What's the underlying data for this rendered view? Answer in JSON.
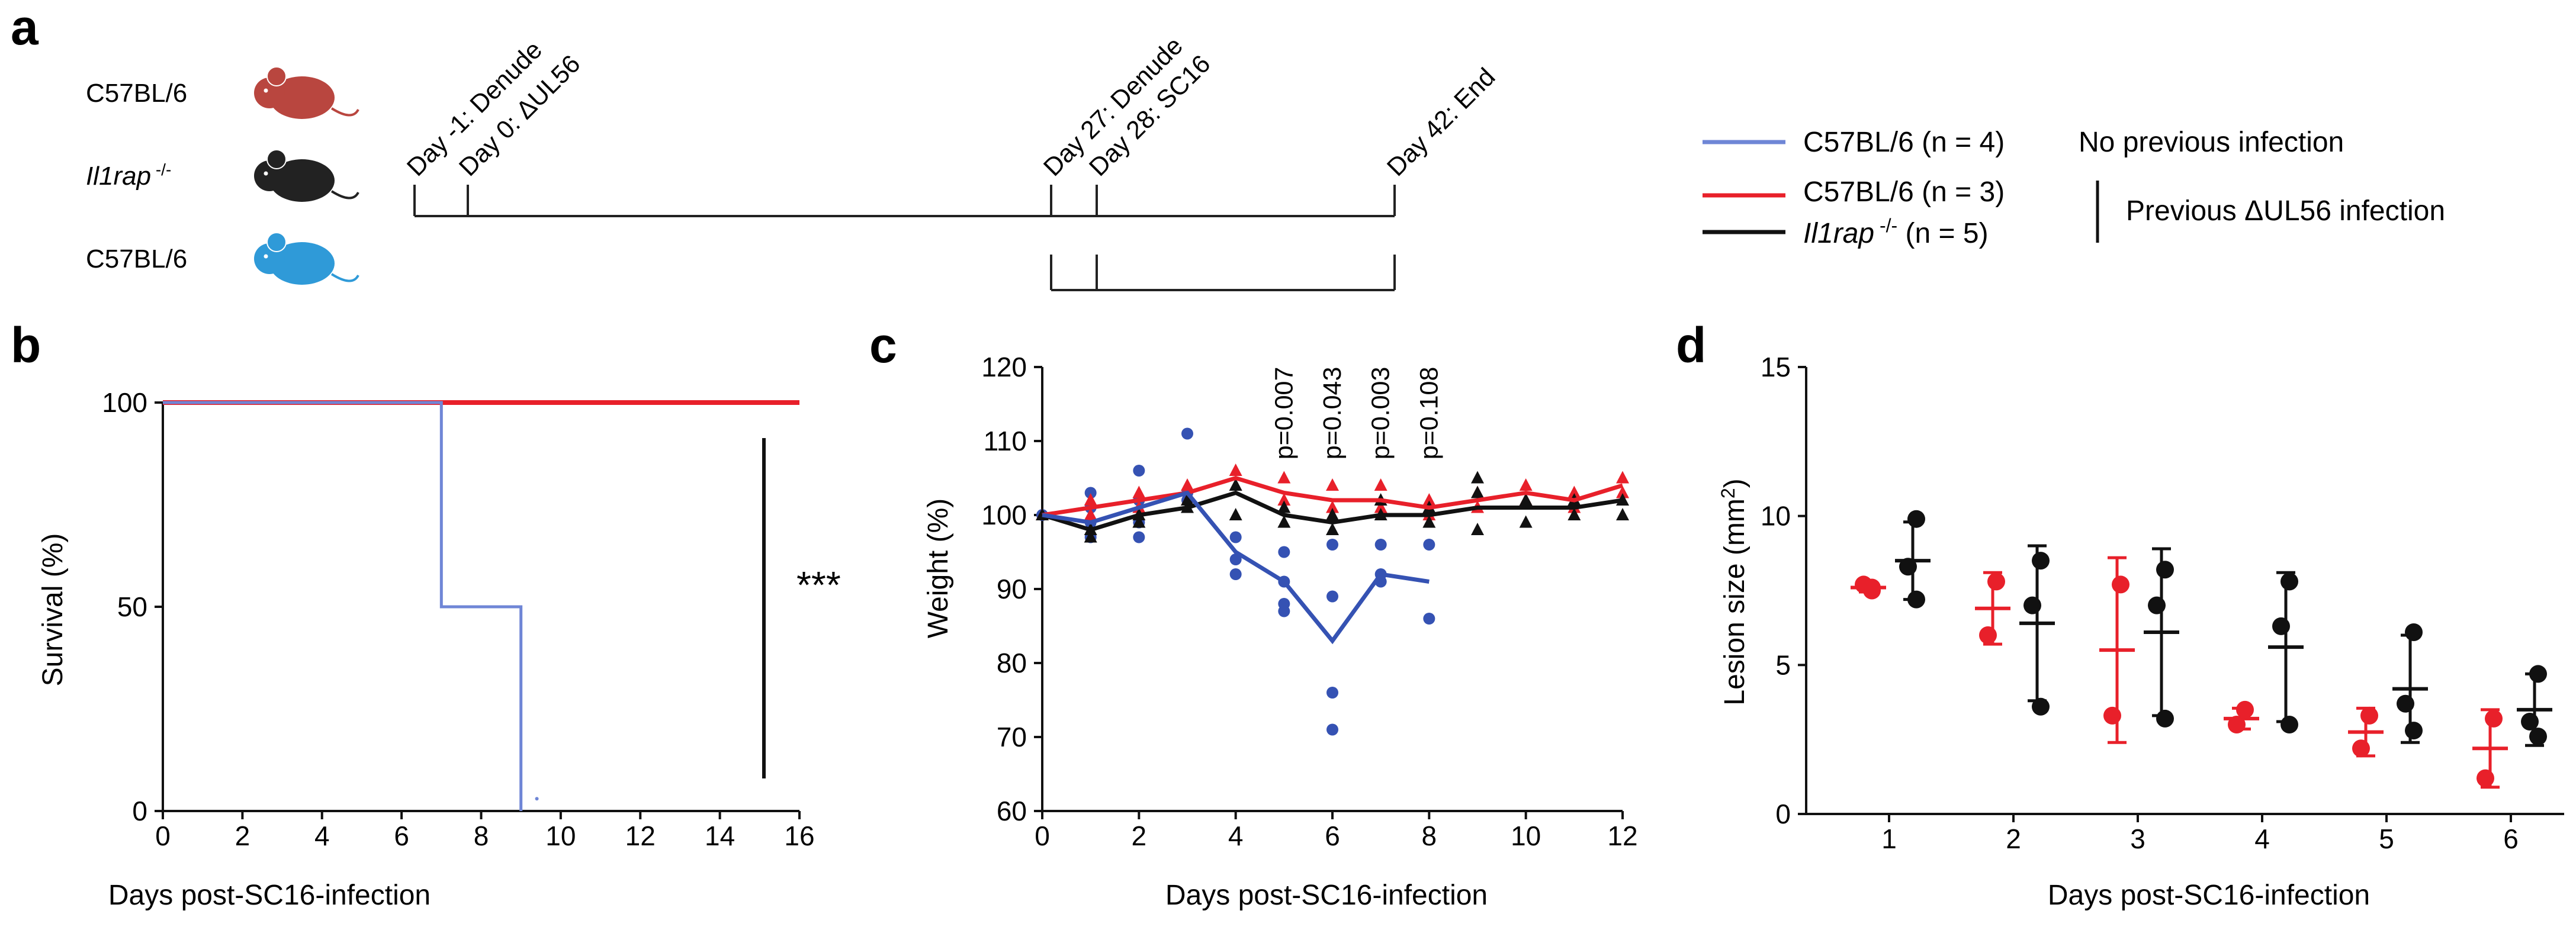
{
  "colors": {
    "blue": "#6f86d6",
    "blue_dots": "#3552b3",
    "red": "#e8202a",
    "black": "#111111",
    "mouse_red": "#b9463f",
    "mouse_black": "#222222",
    "mouse_blue": "#2f9ad8"
  },
  "panel_a": {
    "label": "a",
    "strains": [
      {
        "name": "C57BL/6",
        "mouse_color": "red"
      },
      {
        "name_italic": "Il1rap",
        "name_sup": " -/-",
        "mouse_color": "black"
      },
      {
        "name": "C57BL/6",
        "mouse_color": "blue"
      }
    ],
    "timeline_labels": [
      "Day -1: Denude",
      "Day 0: ΔUL56",
      "Day 27: Denude",
      "Day 28: SC16",
      "Day 42: End"
    ]
  },
  "legend": {
    "entries": [
      {
        "label": "C57BL/6 (n = 4)",
        "color": "blue"
      },
      {
        "label": "C57BL/6 (n = 3)",
        "color": "red"
      },
      {
        "label_italic": "Il1rap",
        "label_sup": " -/-",
        "label_rest": " (n = 5)",
        "color": "black"
      }
    ],
    "note_1": "No previous infection",
    "note_2": "Previous ΔUL56 infection"
  },
  "chart_data": [
    {
      "panel": "b",
      "type": "line",
      "subtype": "survival-step",
      "xlabel": "Days post-SC16-infection",
      "ylabel": "Survival (%)",
      "xlim": [
        0,
        16
      ],
      "ylim": [
        0,
        100
      ],
      "x_ticks": [
        0,
        2,
        4,
        6,
        8,
        10,
        12,
        14,
        16
      ],
      "y_ticks": [
        0,
        50,
        100
      ],
      "series": [
        {
          "name": "C57BL/6 (n = 4) blue",
          "color": "blue",
          "x": [
            0,
            7,
            7,
            9,
            9
          ],
          "y": [
            100,
            100,
            50,
            50,
            0
          ]
        },
        {
          "name": "C57BL/6 (n = 3) red",
          "color": "red",
          "x": [
            0,
            16
          ],
          "y": [
            100,
            100
          ]
        },
        {
          "name": "Il1rap -/- (n = 5)",
          "color": "black",
          "x": [
            0,
            16
          ],
          "y": [
            100,
            100
          ]
        }
      ],
      "significance": "***"
    },
    {
      "panel": "c",
      "type": "line",
      "xlabel": "Days post-SC16-infection",
      "ylabel": "Weight (%)",
      "xlim": [
        0,
        12
      ],
      "ylim": [
        60,
        120
      ],
      "x_ticks": [
        0,
        2,
        4,
        6,
        8,
        10,
        12
      ],
      "y_ticks": [
        60,
        70,
        80,
        90,
        100,
        110,
        120
      ],
      "pvalue_labels": [
        {
          "day": 5,
          "text": "p=0.007"
        },
        {
          "day": 6,
          "text": "p=0.043"
        },
        {
          "day": 7,
          "text": "p=0.003"
        },
        {
          "day": 8,
          "text": "p=0.108"
        }
      ],
      "series": [
        {
          "name": "C57BL/6 (n = 4) blue",
          "color": "blue",
          "mean_x": [
            0,
            1,
            2,
            3,
            4,
            5,
            6,
            7,
            8
          ],
          "mean_y": [
            100,
            99,
            101,
            103,
            95,
            91,
            83,
            92,
            91
          ],
          "points": [
            [
              0,
              100
            ],
            [
              1,
              103
            ],
            [
              1,
              101
            ],
            [
              1,
              99
            ],
            [
              1,
              97
            ],
            [
              2,
              106
            ],
            [
              2,
              102
            ],
            [
              2,
              99
            ],
            [
              2,
              97
            ],
            [
              3,
              111
            ],
            [
              3,
              103
            ],
            [
              3,
              102
            ],
            [
              4,
              97
            ],
            [
              4,
              94
            ],
            [
              4,
              92
            ],
            [
              5,
              95
            ],
            [
              5,
              91
            ],
            [
              5,
              88
            ],
            [
              5,
              87
            ],
            [
              6,
              96
            ],
            [
              6,
              89
            ],
            [
              6,
              76
            ],
            [
              6,
              71
            ],
            [
              7,
              96
            ],
            [
              7,
              92
            ],
            [
              7,
              91
            ],
            [
              8,
              96
            ],
            [
              8,
              86
            ]
          ]
        },
        {
          "name": "C57BL/6 (n = 3) red",
          "color": "red",
          "mean_x": [
            0,
            1,
            2,
            3,
            4,
            5,
            6,
            7,
            8,
            9,
            10,
            11,
            12
          ],
          "mean_y": [
            100,
            101,
            102,
            103,
            105,
            103,
            102,
            102,
            101,
            102,
            103,
            102,
            104
          ],
          "points": [
            [
              0,
              100
            ],
            [
              1,
              102
            ],
            [
              1,
              100
            ],
            [
              2,
              103
            ],
            [
              2,
              101
            ],
            [
              3,
              104
            ],
            [
              3,
              102
            ],
            [
              4,
              106
            ],
            [
              4,
              104
            ],
            [
              5,
              105
            ],
            [
              5,
              102
            ],
            [
              6,
              104
            ],
            [
              6,
              101
            ],
            [
              7,
              104
            ],
            [
              7,
              101
            ],
            [
              8,
              102
            ],
            [
              8,
              100
            ],
            [
              9,
              103
            ],
            [
              9,
              101
            ],
            [
              10,
              104
            ],
            [
              10,
              102
            ],
            [
              11,
              103
            ],
            [
              11,
              101
            ],
            [
              12,
              105
            ],
            [
              12,
              103
            ]
          ]
        },
        {
          "name": "Il1rap -/- (n = 5)",
          "color": "black",
          "mean_x": [
            0,
            1,
            2,
            3,
            4,
            5,
            6,
            7,
            8,
            9,
            10,
            11,
            12
          ],
          "mean_y": [
            100,
            98,
            100,
            101,
            103,
            100,
            99,
            100,
            100,
            101,
            101,
            101,
            102
          ],
          "points": [
            [
              0,
              100
            ],
            [
              1,
              98
            ],
            [
              1,
              97
            ],
            [
              2,
              100
            ],
            [
              2,
              99
            ],
            [
              3,
              102
            ],
            [
              3,
              101
            ],
            [
              4,
              104
            ],
            [
              4,
              100
            ],
            [
              5,
              101
            ],
            [
              5,
              99
            ],
            [
              6,
              100
            ],
            [
              6,
              98
            ],
            [
              7,
              102
            ],
            [
              7,
              100
            ],
            [
              8,
              101
            ],
            [
              8,
              99
            ],
            [
              9,
              105
            ],
            [
              9,
              103
            ],
            [
              9,
              98
            ],
            [
              10,
              102
            ],
            [
              10,
              99
            ],
            [
              11,
              102
            ],
            [
              11,
              100
            ],
            [
              12,
              102
            ],
            [
              12,
              100
            ]
          ]
        }
      ]
    },
    {
      "panel": "d",
      "type": "scatter",
      "subtype": "dot-plot-mean-sd",
      "xlabel": "Days post-SC16-infection",
      "ylabel": "Lesion size (mm",
      "ylabel_sup": "2",
      "ylabel_end": ")",
      "ylim": [
        0,
        15
      ],
      "x_ticks": [
        1,
        2,
        3,
        4,
        5,
        6
      ],
      "y_ticks": [
        0,
        5,
        10,
        15
      ],
      "groups": [
        {
          "color": "red",
          "day": 1,
          "points": [
            7.5,
            7.7,
            7.6
          ],
          "mean": 7.6,
          "sd": 0.15
        },
        {
          "color": "black",
          "day": 1,
          "points": [
            9.9,
            8.3,
            7.2
          ],
          "mean": 8.5,
          "sd": 1.3
        },
        {
          "color": "red",
          "day": 2,
          "points": [
            7.8,
            6.0
          ],
          "mean": 6.9,
          "sd": 1.2
        },
        {
          "color": "black",
          "day": 2,
          "points": [
            8.5,
            7.0,
            3.6
          ],
          "mean": 6.4,
          "sd": 2.6
        },
        {
          "color": "red",
          "day": 3,
          "points": [
            7.7,
            3.3
          ],
          "mean": 5.5,
          "sd": 3.1
        },
        {
          "color": "black",
          "day": 3,
          "points": [
            8.2,
            7.0,
            3.2
          ],
          "mean": 6.1,
          "sd": 2.8
        },
        {
          "color": "red",
          "day": 4,
          "points": [
            3.5,
            3.0
          ],
          "mean": 3.2,
          "sd": 0.35
        },
        {
          "color": "black",
          "day": 4,
          "points": [
            7.8,
            6.3,
            3.0
          ],
          "mean": 5.6,
          "sd": 2.5
        },
        {
          "color": "red",
          "day": 5,
          "points": [
            3.3,
            2.2
          ],
          "mean": 2.75,
          "sd": 0.8
        },
        {
          "color": "black",
          "day": 5,
          "points": [
            6.1,
            3.7,
            2.8
          ],
          "mean": 4.2,
          "sd": 1.8
        },
        {
          "color": "red",
          "day": 6,
          "points": [
            3.2,
            1.2
          ],
          "mean": 2.2,
          "sd": 1.3
        },
        {
          "color": "black",
          "day": 6,
          "points": [
            4.7,
            3.1,
            2.6
          ],
          "mean": 3.5,
          "sd": 1.2
        }
      ]
    }
  ]
}
